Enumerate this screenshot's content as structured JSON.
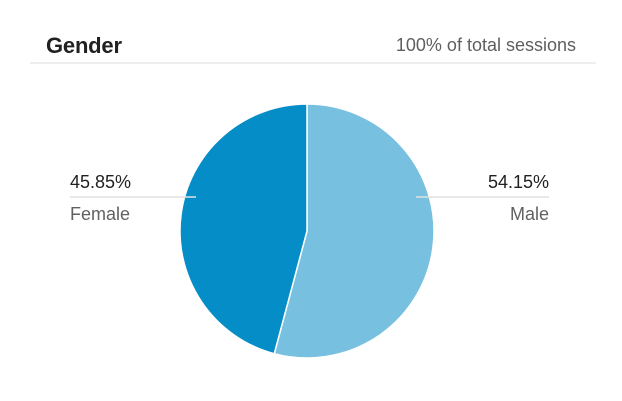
{
  "card": {
    "title": "Gender",
    "subtitle": "100% of total sessions"
  },
  "chart_data": {
    "type": "pie",
    "title": "Gender",
    "subtitle": "100% of total sessions",
    "slices": [
      {
        "label": "Male",
        "value": 54.15,
        "value_label": "54.15%",
        "color": "#78c0e0"
      },
      {
        "label": "Female",
        "value": 45.85,
        "value_label": "45.85%",
        "color": "#058dc7"
      }
    ],
    "legend": "none",
    "label_placement": "outside-sides"
  }
}
